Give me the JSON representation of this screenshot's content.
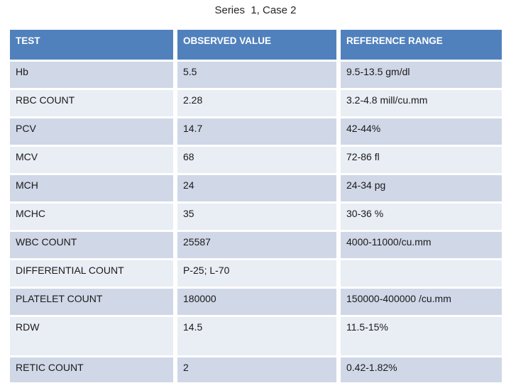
{
  "slide": {
    "title": "Series  1, Case 2"
  },
  "colors": {
    "header_bg": "#5081BD",
    "band_dark": "#D0D7E7",
    "band_light": "#E9EDF4",
    "header_text": "#FFFFFF",
    "cell_text": "#1A1A1A",
    "background": "#FFFFFF"
  },
  "table": {
    "columns": [
      "TEST",
      "OBSERVED VALUE",
      "REFERENCE RANGE"
    ],
    "rows": [
      {
        "test": "Hb",
        "observed": "5.5",
        "reference": "9.5-13.5 gm/dl"
      },
      {
        "test": "RBC COUNT",
        "observed": "2.28",
        "reference": "3.2-4.8 mill/cu.mm"
      },
      {
        "test": "PCV",
        "observed": "14.7",
        "reference": "42-44%"
      },
      {
        "test": "MCV",
        "observed": "68",
        "reference": "72-86 fl"
      },
      {
        "test": "MCH",
        "observed": "24",
        "reference": "24-34 pg"
      },
      {
        "test": "MCHC",
        "observed": "35",
        "reference": "30-36 %"
      },
      {
        "test": "WBC COUNT",
        "observed": "25587",
        "reference": "4000-11000/cu.mm"
      },
      {
        "test": "DIFFERENTIAL COUNT",
        "observed": "P-25; L-70",
        "reference": ""
      },
      {
        "test": "PLATELET COUNT",
        "observed": "180000",
        "reference": "150000-400000 /cu.mm"
      },
      {
        "test": "RDW",
        "observed": "14.5",
        "reference": "11.5-15%"
      },
      {
        "test": "RETIC COUNT",
        "observed": "2",
        "reference": "0.42-1.82%"
      }
    ]
  }
}
